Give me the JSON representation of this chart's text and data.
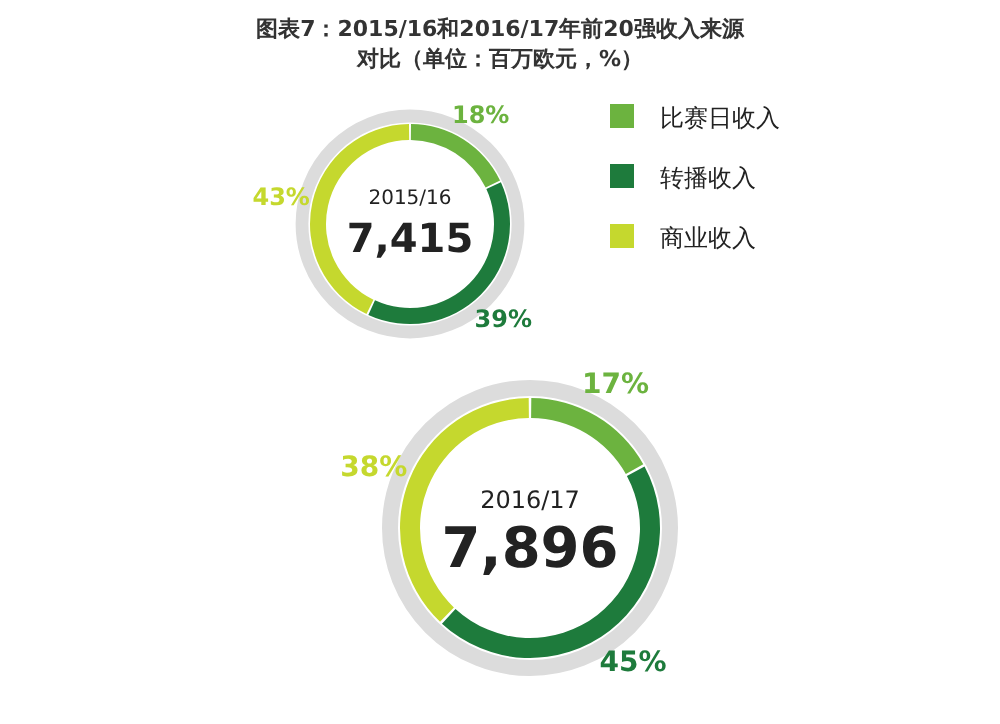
{
  "chart_data": [
    {
      "type": "donut",
      "title": "图表7：2015/16和2016/17年前20强收入来源对比（单位：百万欧元，%）",
      "categories": [
        "比赛日收入",
        "转播收入",
        "商业收入"
      ],
      "values": [
        18,
        39,
        43
      ],
      "colors": [
        "#6cb33f",
        "#1e7b3c",
        "#c5d82e"
      ],
      "value_labels": [
        "18%",
        "39%",
        "43%"
      ],
      "annotations": [
        "2015/16",
        "7,415"
      ],
      "legend": "right"
    },
    {
      "type": "donut",
      "categories": [
        null,
        null,
        null
      ],
      "values": [
        17,
        45,
        38
      ],
      "colors": [
        "#6cb33f",
        "#1e7b3c",
        "#c5d82e"
      ],
      "value_labels": [
        "17%",
        "45%",
        "38%"
      ],
      "annotations": [
        "2016/17",
        "7,896"
      ]
    }
  ]
}
